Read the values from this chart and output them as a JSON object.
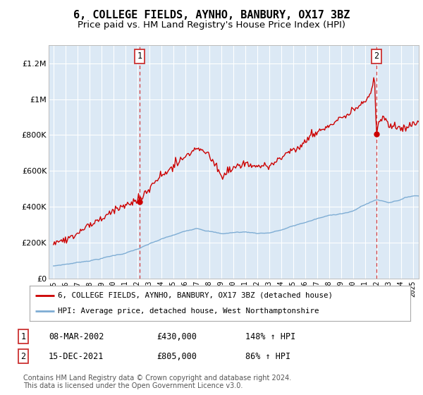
{
  "title": "6, COLLEGE FIELDS, AYNHO, BANBURY, OX17 3BZ",
  "subtitle": "Price paid vs. HM Land Registry's House Price Index (HPI)",
  "title_fontsize": 11,
  "subtitle_fontsize": 9.5,
  "bg_color": "#dce9f5",
  "fig_bg_color": "#ffffff",
  "red_line_color": "#cc0000",
  "blue_line_color": "#7eadd4",
  "marker1_x": 2002.19,
  "marker1_y": 430000,
  "marker2_x": 2021.96,
  "marker2_y": 805000,
  "ylim": [
    0,
    1300000
  ],
  "xlim_start": 1994.6,
  "xlim_end": 2025.5,
  "yticks": [
    0,
    200000,
    400000,
    600000,
    800000,
    1000000,
    1200000
  ],
  "ytick_labels": [
    "£0",
    "£200K",
    "£400K",
    "£600K",
    "£800K",
    "£1M",
    "£1.2M"
  ],
  "xticks": [
    1995,
    1996,
    1997,
    1998,
    1999,
    2000,
    2001,
    2002,
    2003,
    2004,
    2005,
    2006,
    2007,
    2008,
    2009,
    2010,
    2011,
    2012,
    2013,
    2014,
    2015,
    2016,
    2017,
    2018,
    2019,
    2020,
    2021,
    2022,
    2023,
    2024,
    2025
  ],
  "xtick_labels": [
    "1995",
    "1996",
    "1997",
    "1998",
    "1999",
    "2000",
    "2001",
    "2002",
    "2003",
    "2004",
    "2005",
    "2006",
    "2007",
    "2008",
    "2009",
    "2010",
    "2011",
    "2012",
    "2013",
    "2014",
    "2015",
    "2016",
    "2017",
    "2018",
    "2019",
    "2020",
    "2021",
    "2022",
    "2023",
    "2024",
    "2025"
  ],
  "legend_line1": "6, COLLEGE FIELDS, AYNHO, BANBURY, OX17 3BZ (detached house)",
  "legend_line2": "HPI: Average price, detached house, West Northamptonshire",
  "table_row1": [
    "1",
    "08-MAR-2002",
    "£430,000",
    "148% ↑ HPI"
  ],
  "table_row2": [
    "2",
    "15-DEC-2021",
    "£805,000",
    "86% ↑ HPI"
  ],
  "footnote": "Contains HM Land Registry data © Crown copyright and database right 2024.\nThis data is licensed under the Open Government Licence v3.0.",
  "footnote_fontsize": 7
}
